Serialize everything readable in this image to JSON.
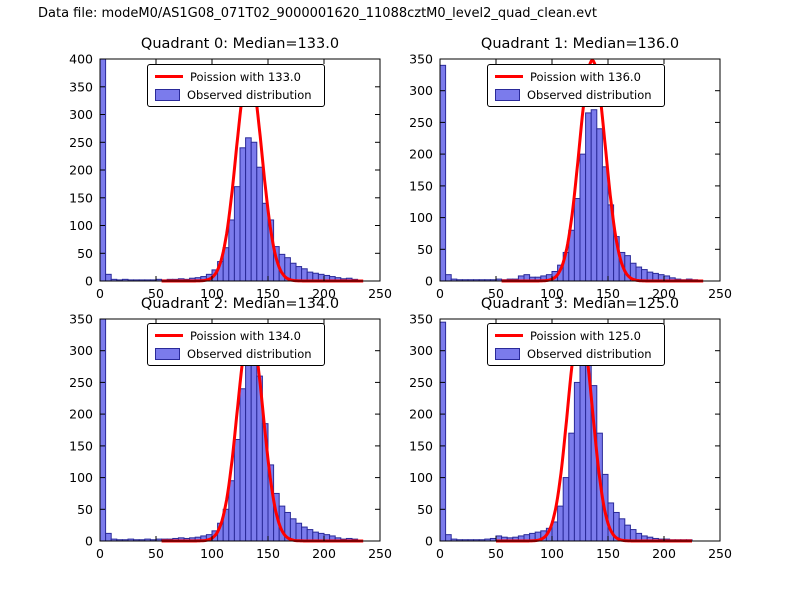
{
  "suptitle": "Data file: modeM0/AS1G08_071T02_9000001620_11088cztM0_level2_quad_clean.evt",
  "colors": {
    "curve": "#ff0000",
    "bar_fill": "#7b7bec",
    "bar_edge": "#2a2a99",
    "axes": "#000000",
    "background": "#ffffff"
  },
  "chart_data": [
    {
      "type": "bar",
      "title": "Quadrant 0: Median=133.0",
      "median": 133.0,
      "legend": [
        "Poission with 133.0",
        "Observed distribution"
      ],
      "legend_position": "upper center",
      "xlabel": "",
      "ylabel": "",
      "xlim": [
        0,
        250
      ],
      "ylim": [
        0,
        400
      ],
      "xticks": [
        0,
        50,
        100,
        150,
        200,
        250
      ],
      "yticks": [
        0,
        50,
        100,
        150,
        200,
        250,
        300,
        350,
        400
      ],
      "grid": false,
      "bin_start": 0,
      "bin_width": 5,
      "counts": [
        400,
        12,
        3,
        2,
        3,
        2,
        2,
        2,
        2,
        2,
        3,
        2,
        3,
        3,
        4,
        3,
        5,
        6,
        8,
        12,
        20,
        35,
        60,
        110,
        170,
        240,
        258,
        250,
        205,
        140,
        110,
        62,
        48,
        42,
        32,
        26,
        22,
        16,
        14,
        12,
        10,
        8,
        6,
        4,
        5,
        3,
        0,
        0,
        0,
        0
      ],
      "curve": {
        "shape": "poisson",
        "mu": 133.0,
        "amplitude": 380,
        "x_range": [
          55,
          235
        ]
      }
    },
    {
      "type": "bar",
      "title": "Quadrant 1: Median=136.0",
      "median": 136.0,
      "legend": [
        "Poission with 136.0",
        "Observed distribution"
      ],
      "legend_position": "upper center",
      "xlabel": "",
      "ylabel": "",
      "xlim": [
        0,
        250
      ],
      "ylim": [
        0,
        350
      ],
      "xticks": [
        0,
        50,
        100,
        150,
        200,
        250
      ],
      "yticks": [
        0,
        50,
        100,
        150,
        200,
        250,
        300,
        350
      ],
      "grid": false,
      "bin_start": 0,
      "bin_width": 5,
      "counts": [
        340,
        10,
        3,
        2,
        2,
        2,
        2,
        2,
        2,
        2,
        3,
        2,
        3,
        3,
        8,
        10,
        6,
        6,
        8,
        10,
        15,
        25,
        45,
        80,
        130,
        200,
        265,
        270,
        240,
        180,
        120,
        70,
        45,
        40,
        28,
        22,
        18,
        14,
        12,
        10,
        8,
        5,
        3,
        2,
        3,
        2,
        0,
        0,
        0,
        0
      ],
      "curve": {
        "shape": "poisson",
        "mu": 136.0,
        "amplitude": 348,
        "x_range": [
          55,
          235
        ]
      }
    },
    {
      "type": "bar",
      "title": "Quadrant 2: Median=134.0",
      "median": 134.0,
      "legend": [
        "Poission with 134.0",
        "Observed distribution"
      ],
      "legend_position": "upper center",
      "xlabel": "",
      "ylabel": "",
      "xlim": [
        0,
        250
      ],
      "ylim": [
        0,
        350
      ],
      "xticks": [
        0,
        50,
        100,
        150,
        200,
        250
      ],
      "yticks": [
        0,
        50,
        100,
        150,
        200,
        250,
        300,
        350
      ],
      "grid": false,
      "bin_start": 0,
      "bin_width": 5,
      "counts": [
        350,
        12,
        3,
        2,
        2,
        3,
        2,
        2,
        3,
        2,
        3,
        3,
        3,
        4,
        5,
        4,
        5,
        6,
        8,
        10,
        16,
        28,
        50,
        95,
        160,
        240,
        335,
        320,
        260,
        185,
        120,
        75,
        55,
        45,
        35,
        28,
        22,
        18,
        14,
        12,
        10,
        8,
        5,
        3,
        4,
        3,
        0,
        0,
        0,
        0
      ],
      "curve": {
        "shape": "poisson",
        "mu": 134.0,
        "amplitude": 335,
        "x_range": [
          55,
          235
        ]
      }
    },
    {
      "type": "bar",
      "title": "Quadrant 3: Median=125.0",
      "median": 125.0,
      "legend": [
        "Poission with 125.0",
        "Observed distribution"
      ],
      "legend_position": "upper center",
      "xlabel": "",
      "ylabel": "",
      "xlim": [
        0,
        250
      ],
      "ylim": [
        0,
        350
      ],
      "xticks": [
        0,
        50,
        100,
        150,
        200,
        250
      ],
      "yticks": [
        0,
        50,
        100,
        150,
        200,
        250,
        300,
        350
      ],
      "grid": false,
      "bin_start": 0,
      "bin_width": 5,
      "counts": [
        345,
        10,
        3,
        2,
        2,
        2,
        2,
        2,
        3,
        4,
        8,
        6,
        5,
        6,
        8,
        10,
        12,
        14,
        16,
        20,
        30,
        55,
        100,
        170,
        250,
        330,
        310,
        245,
        170,
        105,
        60,
        45,
        35,
        25,
        18,
        12,
        8,
        6,
        4,
        3,
        3,
        2,
        2,
        2,
        2,
        0,
        0,
        0,
        0,
        0
      ],
      "curve": {
        "shape": "poisson",
        "mu": 125.0,
        "amplitude": 340,
        "x_range": [
          50,
          225
        ]
      }
    }
  ]
}
